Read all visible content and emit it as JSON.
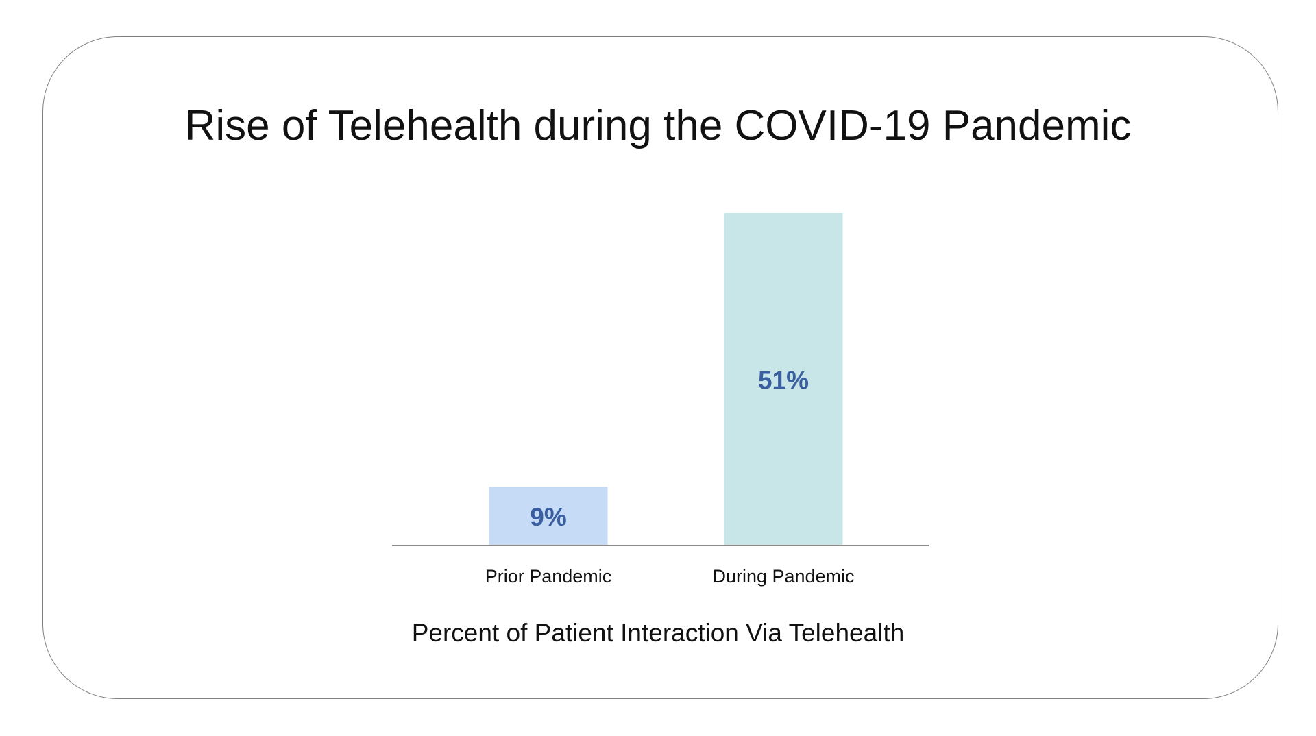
{
  "chart_data": {
    "type": "bar",
    "title": "Rise of Telehealth during the COVID-19 Pandemic",
    "xlabel": "Percent of Patient Interaction Via Telehealth",
    "ylabel": "",
    "categories": [
      "Prior Pandemic",
      "During Pandemic"
    ],
    "values": [
      9,
      51
    ],
    "data_labels": [
      "9%",
      "51%"
    ],
    "colors": [
      "#c6dbf5",
      "#c8e6e7"
    ],
    "label_color": "#3a5fa0",
    "ylim": [
      0,
      51
    ],
    "grid": false,
    "legend": "none"
  }
}
